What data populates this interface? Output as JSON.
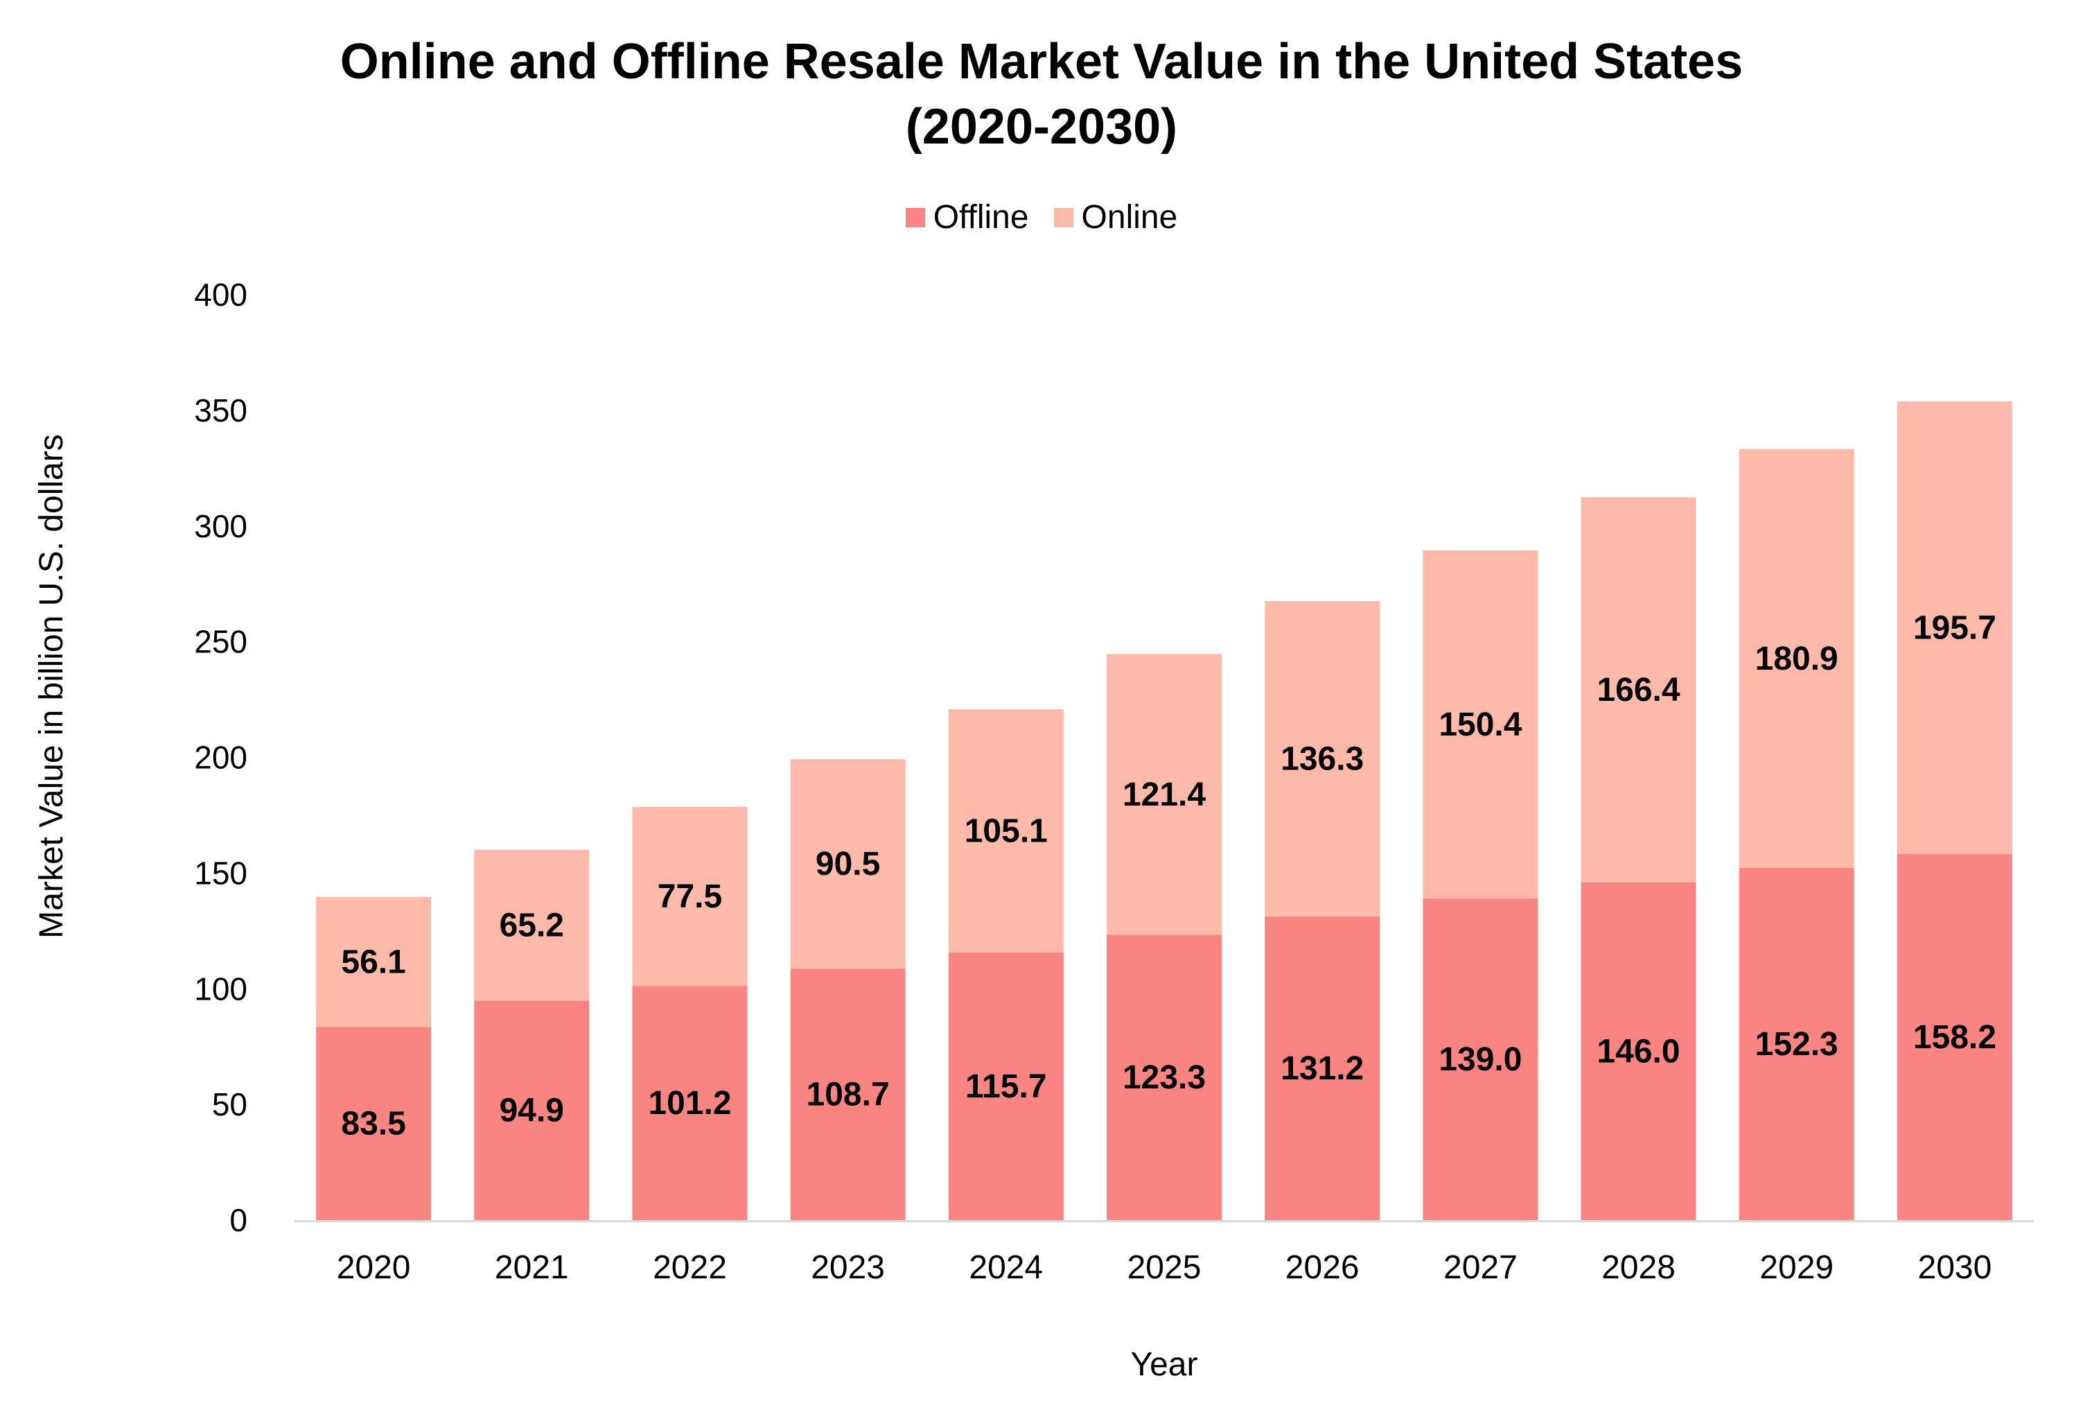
{
  "chart_data": {
    "type": "bar",
    "stacked": true,
    "title": [
      "Online and Offline Resale Market Value in the United States",
      "(2020-2030)"
    ],
    "xlabel": "Year",
    "ylabel": "Market Value in billion U.S. dollars",
    "categories": [
      "2020",
      "2021",
      "2022",
      "2023",
      "2024",
      "2025",
      "2026",
      "2027",
      "2028",
      "2029",
      "2030"
    ],
    "series": [
      {
        "name": "Offline",
        "color": "#f98582",
        "values": [
          83.5,
          94.9,
          101.2,
          108.7,
          115.7,
          123.3,
          131.2,
          139.0,
          146.0,
          152.3,
          158.2
        ],
        "labels": [
          "83.5",
          "94.9",
          "101.2",
          "108.7",
          "115.7",
          "123.3",
          "131.2",
          "139.0",
          "146.0",
          "152.3",
          "158.2"
        ]
      },
      {
        "name": "Online",
        "color": "#fdb9aa",
        "values": [
          56.1,
          65.2,
          77.5,
          90.5,
          105.1,
          121.4,
          136.3,
          150.4,
          166.4,
          180.9,
          195.7
        ],
        "labels": [
          "56.1",
          "65.2",
          "77.5",
          "90.5",
          "105.1",
          "121.4",
          "136.3",
          "150.4",
          "166.4",
          "180.9",
          "195.7"
        ]
      }
    ],
    "ylim": [
      0,
      400
    ],
    "yticks": [
      "0",
      "50",
      "100",
      "150",
      "200",
      "250",
      "300",
      "350",
      "400"
    ],
    "grid": false,
    "legend_position": "top-center",
    "axis_color": "#d9d9d9"
  }
}
